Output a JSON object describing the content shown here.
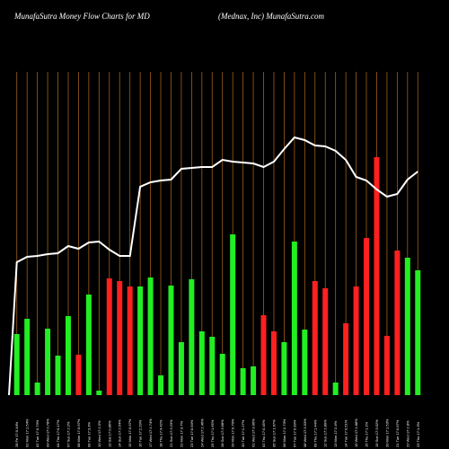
{
  "header": {
    "title_left": "MunafaSutra  Money Flow  Charts for MD",
    "title_right": "(Mednax,  Inc) MunafaSutra.com"
  },
  "chart_data": {
    "type": "bar",
    "title": "MunafaSutra  Money Flow  Charts for MD",
    "subtitle": "(Mednax,  Inc) MunafaSutra.com",
    "xlabel": "",
    "ylabel": "",
    "grid": "vertical",
    "colors": {
      "up": "#22ee22",
      "down": "#ff2020",
      "line": "#ffffff",
      "grid": "#a0601a",
      "background": "#000000"
    },
    "categories": [
      "28 Fri 17:0.44%",
      "01 Mon 17:1.54%",
      "02 Tue 17:0.73%",
      "03 Wed 17:0.78%",
      "04 Thu 17:0.17%",
      "07 Sun 17:2.2%",
      "08 Mon 17:0.67%",
      "09 Tue 17:3.3%",
      "10 Wed 17:1.5%",
      "13 Sat 17:0.86%",
      "14 Sun 17:2.54%",
      "15 Mon 17:0.97%",
      "16 Tue 17:2.29%",
      "17 Wed 17:1.74%",
      "18 Thu 17:4.42%",
      "21 Sun 17:3.23%",
      "22 Mon 17:3.7%",
      "23 Tue 17:0.94%",
      "24 Wed 17:2.46%",
      "25 Thu 17:1.65%",
      "28 Sun 17:3.68%",
      "29 Mon 17:0.79%",
      "30 Tue 17:1.27%",
      "01 Wed 17:3.96%",
      "02 Thu 17:0.45%",
      "05 Sun 17:1.67%",
      "06 Mon 17:2.73%",
      "07 Tue 17:0.99%",
      "08 Wed 17:3.53%",
      "09 Thu 17:1.44%",
      "12 Sun 17:2.89%",
      "13 Mon 17:2.4%",
      "14 Tue 17:0.51%",
      "15 Wed 17:1.88%",
      "16 Thu 17:1.1%",
      "19 Sun 17:3.02%",
      "20 Mon 17:1.53%",
      "21 Tue 17:0.67%",
      "22 Wed 17:2.8%",
      "23 Thu 17:1.3%"
    ],
    "values": [
      68,
      85,
      14,
      74,
      44,
      88,
      45,
      112,
      5,
      130,
      127,
      121,
      121,
      131,
      22,
      122,
      59,
      129,
      71,
      65,
      46,
      179,
      30,
      32,
      89,
      71,
      59,
      171,
      73,
      127,
      119,
      14,
      80,
      121,
      175,
      265,
      66,
      161,
      153,
      139
    ],
    "direction": [
      "up",
      "up",
      "up",
      "up",
      "up",
      "up",
      "down",
      "up",
      "up",
      "down",
      "down",
      "down",
      "up",
      "up",
      "up",
      "up",
      "up",
      "up",
      "up",
      "up",
      "up",
      "up",
      "up",
      "up",
      "down",
      "down",
      "up",
      "up",
      "up",
      "down",
      "down",
      "up",
      "down",
      "down",
      "down",
      "down",
      "down",
      "down",
      "up",
      "up"
    ],
    "line_values": [
      148,
      154,
      155,
      157,
      158,
      166,
      163,
      170,
      171,
      162,
      155,
      155,
      232,
      237,
      239,
      240,
      252,
      253,
      254,
      254,
      262,
      260,
      259,
      258,
      254,
      260,
      274,
      287,
      284,
      278,
      277,
      272,
      262,
      243,
      239,
      229,
      221,
      224,
      240,
      249
    ],
    "ylim": [
      0,
      360
    ]
  }
}
